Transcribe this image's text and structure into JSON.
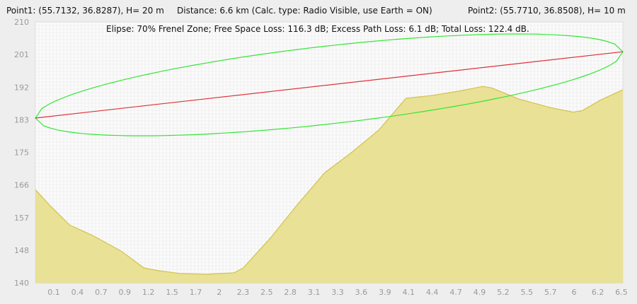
{
  "header": {
    "point1": "Point1: (55.7132, 36.8287), H= 20 m",
    "distance": "Distance: 6.6 km (Calc. type: Radio Visible, use Earth = ON)",
    "point2": "Point2: (55.7710, 36.8508), H= 10 m"
  },
  "chart_data": {
    "type": "area",
    "subtitle": "Elipse: 70% Frenel Zone;  Free Space Loss: 116.3 dB;  Excess Path Loss: 6.1 dB;   Total Loss: 122.4 dB.",
    "xlim": [
      0,
      6.5
    ],
    "ylim": [
      140,
      210
    ],
    "y_ticks": [
      "210",
      "201",
      "192",
      "183",
      "175",
      "166",
      "157",
      "148",
      "140"
    ],
    "x_ticks": [
      "0.1",
      "0.4",
      "0.7",
      "0.9",
      "1.2",
      "1.5",
      "1.7",
      "2",
      "2.3",
      "2.5",
      "2.8",
      "3.1",
      "3.3",
      "3.6",
      "3.9",
      "4.1",
      "4.4",
      "4.7",
      "4.9",
      "5.2",
      "5.5",
      "5.7",
      "6",
      "6.2",
      "6.5"
    ],
    "grid": true,
    "terrain": {
      "x": [
        0,
        0.15,
        0.38,
        0.65,
        0.95,
        1.2,
        1.35,
        1.6,
        1.9,
        2.2,
        2.3,
        2.6,
        2.9,
        3.2,
        3.5,
        3.8,
        4.1,
        4.4,
        4.7,
        4.95,
        5.05,
        5.35,
        5.7,
        5.95,
        6.05,
        6.25,
        6.5
      ],
      "y": [
        165,
        161,
        155.5,
        152.5,
        148.5,
        144,
        143.3,
        142.5,
        142.3,
        142.7,
        144,
        152,
        161,
        169.5,
        175,
        181,
        189.5,
        190.3,
        191.5,
        192.7,
        192.3,
        189.3,
        187,
        185.8,
        186.2,
        189,
        191.8
      ]
    },
    "los_line": {
      "x": [
        0,
        6.5
      ],
      "y": [
        184.2,
        202
      ]
    },
    "fresnel_ellipse": {
      "color": "#00e000"
    },
    "colors": {
      "terrain_fill": "#e8df90",
      "terrain_stroke": "#d2c24e",
      "los": "#e0303a",
      "ellipse": "#33e633",
      "grid": "#e8e8e8",
      "plot_bg": "#fbfbfb",
      "tick_text": "#9a9a9a"
    }
  }
}
